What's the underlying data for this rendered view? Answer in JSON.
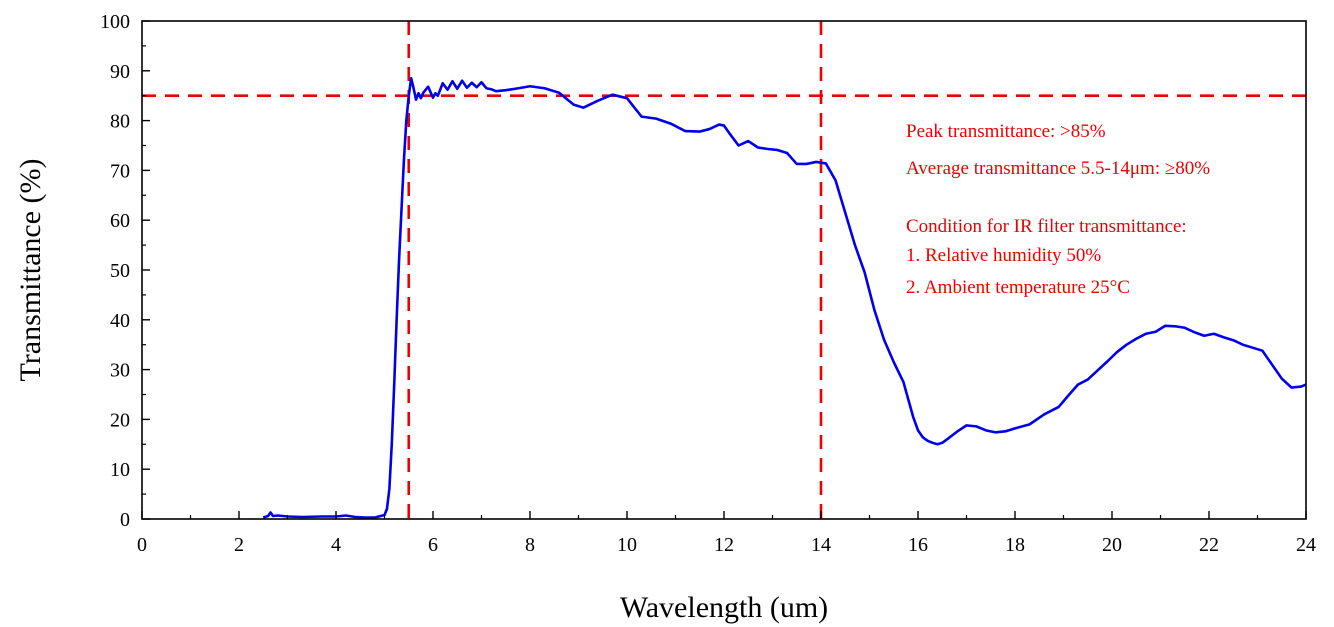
{
  "chart_data": {
    "type": "line",
    "xlabel": "Wavelength (um)",
    "ylabel": "Transmittance (%)",
    "xlim": [
      0,
      24
    ],
    "ylim": [
      0,
      100
    ],
    "x_ticks": [
      0,
      2,
      4,
      6,
      8,
      10,
      12,
      14,
      16,
      18,
      20,
      22,
      24
    ],
    "y_ticks": [
      0,
      10,
      20,
      30,
      40,
      50,
      60,
      70,
      80,
      90,
      100
    ],
    "grid": false,
    "line_color": "#0000ee",
    "ref_color": "#ee0000",
    "series": [
      {
        "x": [
          2.5,
          2.6,
          2.65,
          2.7,
          2.8,
          3.0,
          3.3,
          3.7,
          4.0,
          4.2,
          4.4,
          4.6,
          4.8,
          5.0,
          5.05,
          5.1,
          5.15,
          5.2,
          5.25,
          5.3,
          5.35,
          5.4,
          5.45,
          5.5,
          5.55,
          5.6,
          5.65,
          5.7,
          5.75,
          5.8,
          5.9,
          6.0,
          6.05,
          6.1,
          6.2,
          6.3,
          6.4,
          6.5,
          6.6,
          6.7,
          6.8,
          6.9,
          7.0,
          7.1,
          7.2,
          7.3,
          7.5,
          7.7,
          8.0,
          8.3,
          8.6,
          8.9,
          9.1,
          9.4,
          9.7,
          10.0,
          10.3,
          10.6,
          10.9,
          11.2,
          11.5,
          11.7,
          11.9,
          12.0,
          12.1,
          12.3,
          12.5,
          12.7,
          12.9,
          13.1,
          13.3,
          13.5,
          13.7,
          13.9,
          14.1,
          14.3,
          14.5,
          14.7,
          14.9,
          15.1,
          15.3,
          15.5,
          15.7,
          15.8,
          15.9,
          16.0,
          16.1,
          16.2,
          16.3,
          16.4,
          16.5,
          16.6,
          16.8,
          17.0,
          17.2,
          17.4,
          17.6,
          17.8,
          18.0,
          18.3,
          18.6,
          18.9,
          19.1,
          19.3,
          19.5,
          19.7,
          19.9,
          20.1,
          20.3,
          20.5,
          20.7,
          20.9,
          21.1,
          21.3,
          21.5,
          21.7,
          21.9,
          22.1,
          22.3,
          22.5,
          22.7,
          22.9,
          23.1,
          23.3,
          23.5,
          23.7,
          23.9,
          24.0
        ],
        "y": [
          0.3,
          0.6,
          1.3,
          0.6,
          0.7,
          0.5,
          0.4,
          0.5,
          0.5,
          0.7,
          0.4,
          0.3,
          0.3,
          0.8,
          2.0,
          6.0,
          15.0,
          27.0,
          40.0,
          52.0,
          62.0,
          72.0,
          80.0,
          85.0,
          88.5,
          86.5,
          84.2,
          85.5,
          84.5,
          85.6,
          86.8,
          84.6,
          85.5,
          85.0,
          87.5,
          86.2,
          87.9,
          86.4,
          88.0,
          86.6,
          87.6,
          86.7,
          87.7,
          86.5,
          86.3,
          85.9,
          86.1,
          86.4,
          86.9,
          86.5,
          85.6,
          83.2,
          82.6,
          84.0,
          85.2,
          84.5,
          80.8,
          80.4,
          79.4,
          77.9,
          77.8,
          78.3,
          79.2,
          79.0,
          77.6,
          75.0,
          75.9,
          74.6,
          74.3,
          74.1,
          73.5,
          71.3,
          71.3,
          71.7,
          71.4,
          68.0,
          61.5,
          55.0,
          49.5,
          42.0,
          36.0,
          31.5,
          27.5,
          24.0,
          20.5,
          17.8,
          16.4,
          15.7,
          15.3,
          15.0,
          15.3,
          16.0,
          17.5,
          18.8,
          18.6,
          17.8,
          17.4,
          17.6,
          18.2,
          19.0,
          21.0,
          22.5,
          24.8,
          27.0,
          28.0,
          29.8,
          31.6,
          33.5,
          35.0,
          36.2,
          37.2,
          37.6,
          38.8,
          38.7,
          38.4,
          37.5,
          36.8,
          37.2,
          36.5,
          35.9,
          35.0,
          34.4,
          33.8,
          31.0,
          28.2,
          26.4,
          26.6,
          27.0
        ]
      }
    ],
    "reference_lines": {
      "vertical": [
        5.5,
        14
      ],
      "horizontal": [
        85
      ]
    }
  },
  "annotations": {
    "peak": "Peak transmittance: >85%",
    "average": "Average transmittance 5.5-14μm: ≥80%",
    "condition_title": "Condition for IR filter transmittance:",
    "condition_1": "1. Relative humidity 50%",
    "condition_2": "2. Ambient temperature 25°C"
  }
}
